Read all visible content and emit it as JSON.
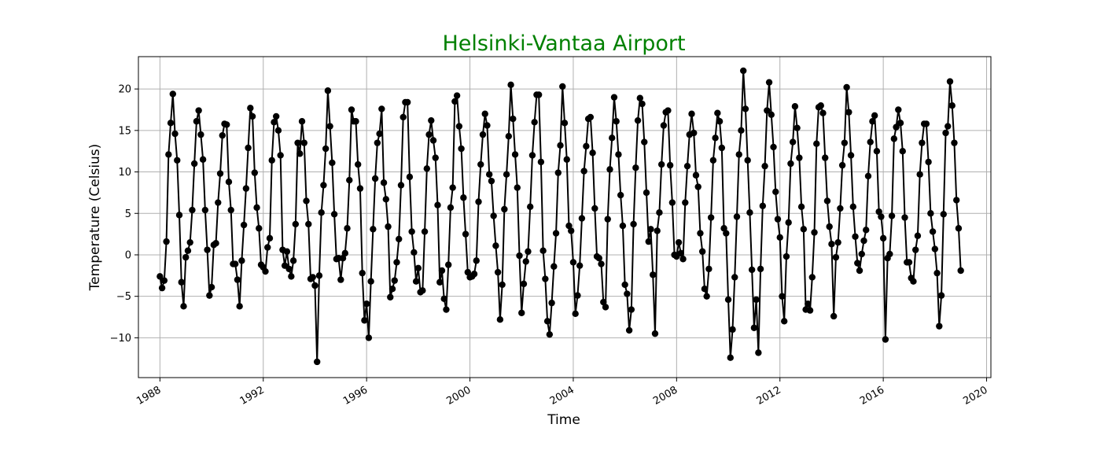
{
  "chart_data": {
    "type": "line",
    "title": "Helsinki-Vantaa Airport",
    "title_color": "#008000",
    "xlabel": "Time",
    "ylabel": "Temperature (Celsius)",
    "x_start": "1988-01",
    "x_step": "month",
    "xlim": [
      "1987-03",
      "2020-03"
    ],
    "ylim": [
      -14.8,
      23.9
    ],
    "x_ticks": [
      "1988",
      "1992",
      "1996",
      "2000",
      "2004",
      "2008",
      "2012",
      "2016",
      "2020"
    ],
    "y_ticks": [
      -10,
      -5,
      0,
      5,
      10,
      15,
      20
    ],
    "grid": true,
    "line_color": "#000000",
    "marker": "circle",
    "series": [
      {
        "values": [
          -2.6,
          -4.0,
          -3.1,
          1.6,
          12.1,
          15.9,
          19.4,
          14.6,
          11.4,
          4.8,
          -3.3,
          -6.2,
          -0.3,
          0.5,
          1.5,
          5.4,
          11.0,
          16.1,
          17.4,
          14.5,
          11.5,
          5.4,
          0.6,
          -4.9,
          -3.9,
          1.2,
          1.4,
          6.3,
          9.8,
          14.4,
          15.8,
          15.7,
          8.8,
          5.4,
          -1.1,
          -1.1,
          -3.0,
          -6.2,
          -0.7,
          3.6,
          8.0,
          12.9,
          17.7,
          16.7,
          9.9,
          5.7,
          3.2,
          -1.2,
          -1.5,
          -2.0,
          0.9,
          2.0,
          11.4,
          16.0,
          16.7,
          15.0,
          12.0,
          0.6,
          -1.3,
          0.4,
          -1.7,
          -2.6,
          -0.7,
          3.7,
          13.5,
          12.2,
          16.1,
          13.5,
          6.5,
          3.7,
          -2.9,
          -2.7,
          -3.7,
          -12.9,
          -2.5,
          5.1,
          8.4,
          12.8,
          19.8,
          15.5,
          11.1,
          4.9,
          -0.5,
          -0.4,
          -3.0,
          -0.4,
          0.2,
          3.2,
          9.0,
          17.5,
          16.1,
          16.1,
          10.9,
          8.0,
          -2.2,
          -7.9,
          -5.9,
          -10.0,
          -3.2,
          3.1,
          9.2,
          13.5,
          14.6,
          17.6,
          8.7,
          6.7,
          3.4,
          -5.1,
          -4.1,
          -3.1,
          -0.9,
          1.9,
          8.4,
          16.6,
          18.4,
          18.4,
          9.4,
          2.8,
          0.3,
          -3.2,
          -1.6,
          -4.5,
          -4.3,
          2.8,
          10.4,
          14.5,
          16.2,
          13.8,
          11.7,
          6.0,
          -3.3,
          -1.9,
          -5.3,
          -6.6,
          -1.2,
          5.7,
          8.1,
          18.5,
          19.2,
          15.5,
          12.8,
          6.9,
          2.5,
          -2.1,
          -2.7,
          -2.6,
          -2.3,
          -0.7,
          6.4,
          10.9,
          14.5,
          17.0,
          15.6,
          9.7,
          8.9,
          4.7,
          1.1,
          -2.1,
          -7.8,
          -3.6,
          5.5,
          9.7,
          14.3,
          20.5,
          16.4,
          12.1,
          8.1,
          -0.1,
          -7.0,
          -3.5,
          -0.8,
          0.4,
          5.8,
          12.0,
          16.0,
          19.3,
          19.3,
          11.2,
          0.5,
          -2.9,
          -8.0,
          -9.6,
          -5.8,
          -1.4,
          2.6,
          9.9,
          13.2,
          20.3,
          15.9,
          11.5,
          3.5,
          2.9,
          -0.9,
          -7.1,
          -4.9,
          -1.3,
          4.4,
          10.1,
          13.1,
          16.4,
          16.6,
          12.3,
          5.6,
          -0.2,
          -0.4,
          -1.1,
          -5.7,
          -6.3,
          4.3,
          10.3,
          14.1,
          19.0,
          16.1,
          12.1,
          7.2,
          3.5,
          -3.6,
          -4.7,
          -9.1,
          -6.6,
          3.7,
          10.5,
          16.2,
          18.9,
          18.2,
          13.6,
          7.5,
          1.6,
          3.1,
          -2.4,
          -9.5,
          2.9,
          5.1,
          10.9,
          15.6,
          17.2,
          17.4,
          10.8,
          6.3,
          0.0,
          -0.2,
          1.5,
          0.2,
          -0.5,
          6.3,
          10.7,
          14.5,
          17.0,
          14.7,
          9.6,
          8.2,
          2.6,
          0.4,
          -4.1,
          -5.0,
          -1.7,
          4.5,
          11.4,
          14.1,
          17.1,
          16.1,
          12.9,
          3.2,
          2.6,
          -5.4,
          -12.4,
          -9.0,
          -2.7,
          4.6,
          12.1,
          15.0,
          22.2,
          17.6,
          11.4,
          5.1,
          -1.8,
          -8.8,
          -5.4,
          -11.8,
          -1.7,
          5.9,
          10.7,
          17.4,
          20.8,
          16.9,
          13.0,
          7.6,
          4.3,
          2.1,
          -5.0,
          -8.0,
          -0.2,
          3.9,
          11.0,
          13.6,
          17.9,
          15.3,
          11.7,
          5.8,
          3.1,
          -6.6,
          -5.9,
          -6.7,
          -2.7,
          2.7,
          13.4,
          17.8,
          18.0,
          17.1,
          11.7,
          6.5,
          3.4,
          1.3,
          -7.4,
          -0.3,
          1.5,
          5.6,
          10.8,
          13.5,
          20.2,
          17.2,
          12.0,
          5.8,
          2.2,
          -1.0,
          -1.9,
          0.1,
          1.7,
          3.0,
          9.5,
          13.6,
          16.1,
          16.8,
          12.5,
          5.2,
          4.6,
          2.0,
          -10.2,
          -0.4,
          0.1,
          4.7,
          14.0,
          15.4,
          17.5,
          15.9,
          12.5,
          4.5,
          -0.9,
          -0.9,
          -2.8,
          -3.2,
          0.6,
          2.3,
          9.7,
          13.5,
          15.8,
          15.8,
          11.2,
          5.0,
          2.8,
          0.7,
          -2.2,
          -8.6,
          -4.9,
          4.9,
          14.7,
          15.5,
          20.9,
          18.0,
          13.5,
          6.6,
          3.2,
          -1.9
        ]
      }
    ]
  }
}
